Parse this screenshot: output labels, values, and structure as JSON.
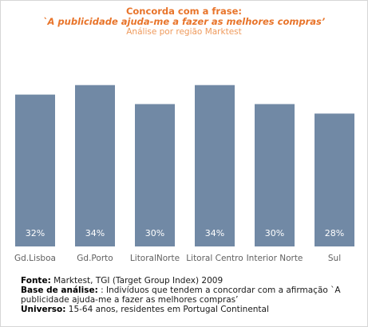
{
  "chart_data": {
    "type": "bar",
    "title": "Concorda com a frase:",
    "subtitle": "`A publicidade ajuda-me a fazer as melhores compras’",
    "subtitle2": "Análise por região Marktest",
    "categories": [
      "Gd.Lisboa",
      "Gd.Porto",
      "LitoralNorte",
      "Litoral Centro",
      "Interior Norte",
      "Sul"
    ],
    "values": [
      32,
      34,
      30,
      34,
      30,
      28
    ],
    "value_labels": [
      "32%",
      "34%",
      "30%",
      "34%",
      "30%",
      "28%"
    ],
    "unit": "%",
    "bar_color": "#7189a5",
    "title_color": "#e8742a",
    "grid": false,
    "legend": "none"
  },
  "notes": {
    "source_label": "Fonte:",
    "source_text": " Marktest, TGI (Target Group Index) 2009",
    "base_label": "Base de análise:",
    "base_text": "  : Indivíduos que tendem a concordar com a afirmação `A publicidade ajuda-me a fazer as melhores compras’",
    "universe_label": "Universo:",
    "universe_text": " 15-64 anos, residentes em Portugal Continental"
  }
}
